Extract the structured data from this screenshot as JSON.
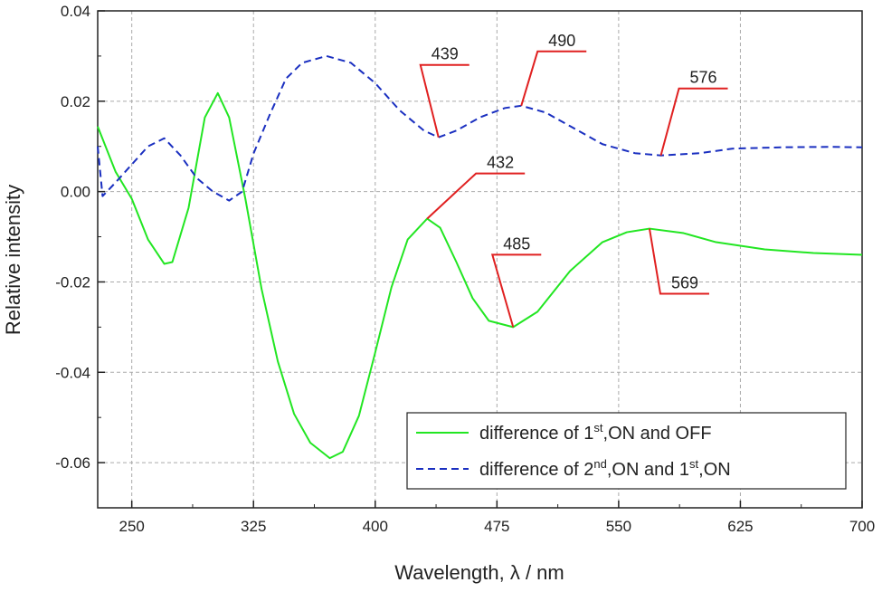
{
  "chart_data": {
    "type": "line",
    "x_label": "Wavelength, λ / nm",
    "y_label": "Relative intensity",
    "xlim": [
      229,
      700
    ],
    "ylim": [
      -0.07,
      0.04
    ],
    "xticks": [
      250,
      325,
      400,
      475,
      550,
      625,
      700
    ],
    "yticks": [
      -0.06,
      -0.04,
      -0.02,
      {
        "value": 0,
        "label": "0.00"
      },
      0.02,
      0.04
    ],
    "grid": true,
    "legend": "lower right",
    "series": [
      {
        "name": "difference of 1st,ON and OFF",
        "color": "#22e622",
        "style": "solid",
        "x": [
          229,
          240,
          250,
          260,
          270,
          275,
          285,
          295,
          303,
          310,
          320,
          330,
          340,
          350,
          360,
          372,
          380,
          390,
          400,
          410,
          420,
          432,
          440,
          450,
          460,
          470,
          485,
          500,
          520,
          540,
          555,
          569,
          590,
          610,
          640,
          670,
          700
        ],
        "values": [
          0.0144,
          0.0044,
          -0.0016,
          -0.0106,
          -0.016,
          -0.0156,
          -0.0036,
          0.0164,
          0.0218,
          0.0164,
          -0.0016,
          -0.0216,
          -0.0376,
          -0.0492,
          -0.0556,
          -0.059,
          -0.0576,
          -0.0496,
          -0.0356,
          -0.0212,
          -0.0106,
          -0.006,
          -0.008,
          -0.0156,
          -0.0236,
          -0.0286,
          -0.03,
          -0.0266,
          -0.0176,
          -0.0112,
          -0.009,
          -0.0082,
          -0.0092,
          -0.0112,
          -0.0128,
          -0.0136,
          -0.014
        ]
      },
      {
        "name": "difference of 2nd,ON and 1st,ON",
        "color": "#1a2fc0",
        "style": "dashed",
        "x": [
          229,
          232,
          240,
          250,
          260,
          270,
          280,
          290,
          300,
          310,
          318,
          325,
          335,
          345,
          355,
          370,
          385,
          400,
          415,
          430,
          439,
          450,
          465,
          480,
          490,
          505,
          520,
          540,
          560,
          576,
          600,
          620,
          650,
          680,
          700
        ],
        "values": [
          0.01,
          -0.001,
          0.002,
          0.006,
          0.01,
          0.0118,
          0.008,
          0.003,
          0.0,
          -0.002,
          0.0,
          0.0084,
          0.017,
          0.025,
          0.0285,
          0.03,
          0.0285,
          0.024,
          0.018,
          0.0135,
          0.012,
          0.0135,
          0.0165,
          0.0185,
          0.019,
          0.0175,
          0.0145,
          0.0105,
          0.0085,
          0.008,
          0.0085,
          0.0095,
          0.0098,
          0.0099,
          0.0098
        ]
      }
    ],
    "annotations": [
      {
        "label": "439",
        "x": 439,
        "y": 0.012
      },
      {
        "label": "490",
        "x": 490,
        "y": 0.019
      },
      {
        "label": "576",
        "x": 576,
        "y": 0.008
      },
      {
        "label": "432",
        "x": 432,
        "y": -0.006
      },
      {
        "label": "485",
        "x": 485,
        "y": -0.03
      },
      {
        "label": "569",
        "x": 569,
        "y": -0.0082
      }
    ]
  }
}
